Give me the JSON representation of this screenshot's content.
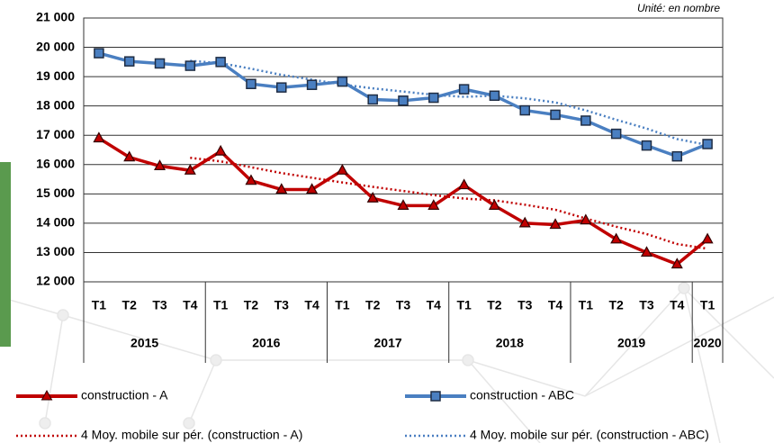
{
  "chart_data": {
    "type": "line",
    "annotation": "Unité: en nombre",
    "categories": [
      "T1",
      "T2",
      "T3",
      "T4",
      "T1",
      "T2",
      "T3",
      "T4",
      "T1",
      "T2",
      "T3",
      "T4",
      "T1",
      "T2",
      "T3",
      "T4",
      "T1",
      "T2",
      "T3",
      "T4",
      "T1"
    ],
    "groups": [
      "2015",
      "2016",
      "2017",
      "2018",
      "2019",
      "2020"
    ],
    "ylim": [
      12000,
      21000
    ],
    "yticks": [
      {
        "value": 12000,
        "label": "12 000"
      },
      {
        "value": 13000,
        "label": "13 000"
      },
      {
        "value": 14000,
        "label": "14 000"
      },
      {
        "value": 15000,
        "label": "15 000"
      },
      {
        "value": 16000,
        "label": "16 000"
      },
      {
        "value": 17000,
        "label": "17 000"
      },
      {
        "value": 18000,
        "label": "18 000"
      },
      {
        "value": 19000,
        "label": "19 000"
      },
      {
        "value": 20000,
        "label": "20 000"
      },
      {
        "value": 21000,
        "label": "21 000"
      }
    ],
    "grid": true,
    "series": [
      {
        "name": "construction - A",
        "color": "#c00000",
        "marker": "triangle",
        "style": "solid",
        "values": [
          16900,
          16250,
          15950,
          15800,
          16450,
          15450,
          15150,
          15150,
          15800,
          14850,
          14600,
          14600,
          15300,
          14600,
          14000,
          13950,
          14100,
          13450,
          13000,
          12600,
          13450
        ]
      },
      {
        "name": "construction - ABC",
        "color": "#4a7fc1",
        "marker": "square",
        "style": "solid",
        "values": [
          19800,
          19520,
          19450,
          19370,
          19500,
          18750,
          18630,
          18720,
          18830,
          18220,
          18180,
          18280,
          18570,
          18350,
          17850,
          17700,
          17500,
          17050,
          16650,
          16280,
          16700
        ]
      },
      {
        "name": "4 Moy. mobile sur pér. (construction - A)",
        "color": "#c00000",
        "style": "dotted",
        "values": [
          null,
          null,
          null,
          16230,
          16110,
          15910,
          15710,
          15550,
          15390,
          15240,
          15100,
          14960,
          14840,
          14780,
          14630,
          14460,
          14160,
          13880,
          13630,
          13290,
          13130
        ]
      },
      {
        "name": "4 Moy. mobile sur pér. (construction - ABC)",
        "color": "#4a7fc1",
        "style": "dotted",
        "values": [
          null,
          null,
          null,
          19540,
          19460,
          19270,
          19060,
          18900,
          18730,
          18600,
          18490,
          18380,
          18310,
          18350,
          18260,
          18120,
          17850,
          17530,
          17230,
          16870,
          16670
        ]
      }
    ]
  }
}
